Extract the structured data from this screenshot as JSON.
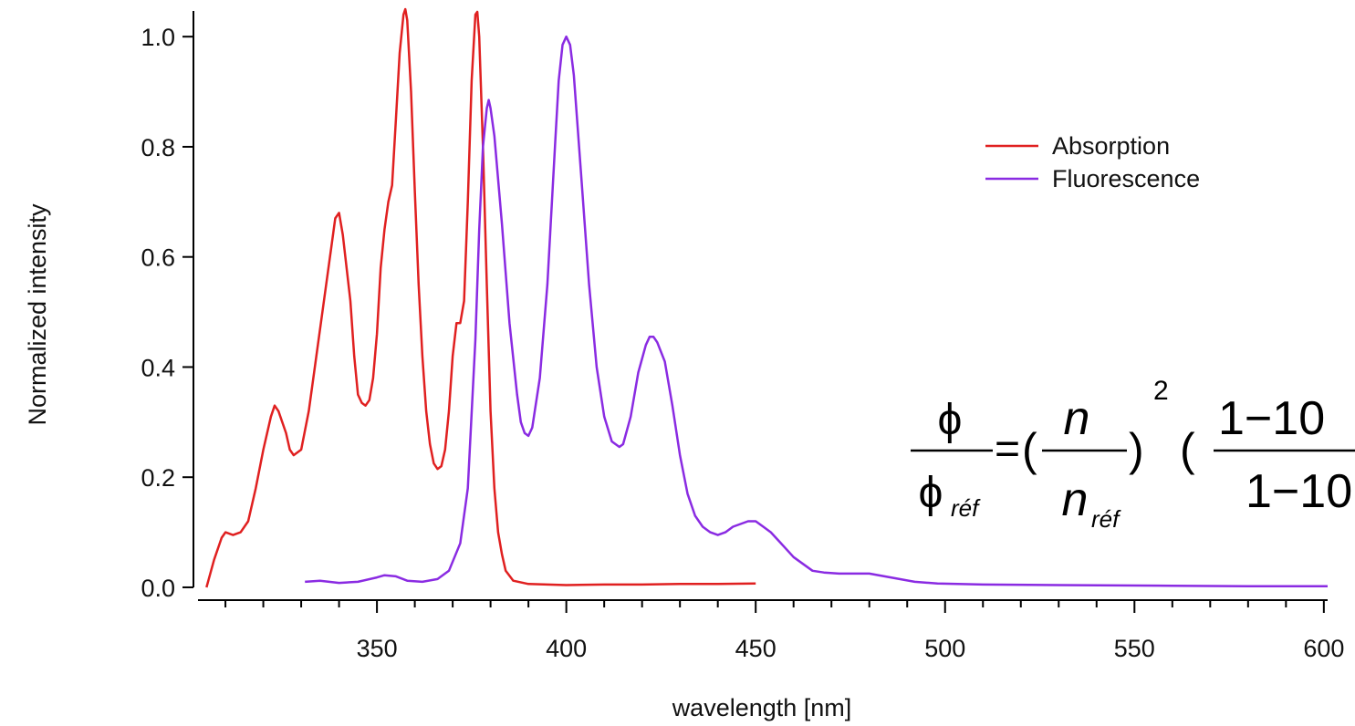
{
  "chart_data": {
    "type": "line",
    "title": "",
    "xlabel": "wavelength [nm]",
    "ylabel": "Normalized intensity",
    "xlim": [
      303,
      601
    ],
    "ylim": [
      -0.01,
      1.05
    ],
    "x_ticks": [
      350,
      400,
      450,
      500,
      550,
      600
    ],
    "x_tick_labels": [
      "350",
      "400",
      "450",
      "500",
      "550",
      "600"
    ],
    "y_ticks": [
      0.0,
      0.2,
      0.4,
      0.6,
      0.8,
      1.0
    ],
    "y_tick_labels": [
      "0.0",
      "0.2",
      "0.4",
      "0.6",
      "0.8",
      "1.0"
    ],
    "grid": false,
    "legend_position": "top-right",
    "series": [
      {
        "name": "Absorption",
        "color": "#e02020",
        "points": [
          [
            305,
            0.0
          ],
          [
            307,
            0.05
          ],
          [
            309,
            0.09
          ],
          [
            310,
            0.1
          ],
          [
            312,
            0.095
          ],
          [
            314,
            0.1
          ],
          [
            316,
            0.12
          ],
          [
            318,
            0.18
          ],
          [
            320,
            0.25
          ],
          [
            322,
            0.31
          ],
          [
            323,
            0.33
          ],
          [
            324,
            0.32
          ],
          [
            326,
            0.28
          ],
          [
            327,
            0.25
          ],
          [
            328,
            0.24
          ],
          [
            330,
            0.25
          ],
          [
            332,
            0.32
          ],
          [
            334,
            0.42
          ],
          [
            336,
            0.52
          ],
          [
            338,
            0.62
          ],
          [
            339,
            0.67
          ],
          [
            340,
            0.68
          ],
          [
            341,
            0.64
          ],
          [
            343,
            0.52
          ],
          [
            344,
            0.42
          ],
          [
            345,
            0.35
          ],
          [
            346,
            0.335
          ],
          [
            347,
            0.33
          ],
          [
            348,
            0.34
          ],
          [
            349,
            0.38
          ],
          [
            350,
            0.46
          ],
          [
            351,
            0.58
          ],
          [
            352,
            0.65
          ],
          [
            353,
            0.7
          ],
          [
            354,
            0.73
          ],
          [
            355,
            0.85
          ],
          [
            356,
            0.97
          ],
          [
            357,
            1.04
          ],
          [
            357.5,
            1.05
          ],
          [
            358,
            1.03
          ],
          [
            359,
            0.9
          ],
          [
            360,
            0.72
          ],
          [
            361,
            0.55
          ],
          [
            362,
            0.42
          ],
          [
            363,
            0.32
          ],
          [
            364,
            0.26
          ],
          [
            365,
            0.225
          ],
          [
            366,
            0.215
          ],
          [
            367,
            0.22
          ],
          [
            368,
            0.25
          ],
          [
            369,
            0.32
          ],
          [
            370,
            0.42
          ],
          [
            371,
            0.48
          ],
          [
            372,
            0.48
          ],
          [
            373,
            0.52
          ],
          [
            374,
            0.7
          ],
          [
            375,
            0.92
          ],
          [
            376,
            1.04
          ],
          [
            376.5,
            1.045
          ],
          [
            377,
            1.0
          ],
          [
            378,
            0.8
          ],
          [
            379,
            0.55
          ],
          [
            380,
            0.32
          ],
          [
            381,
            0.18
          ],
          [
            382,
            0.1
          ],
          [
            383,
            0.06
          ],
          [
            384,
            0.03
          ],
          [
            386,
            0.012
          ],
          [
            390,
            0.006
          ],
          [
            395,
            0.005
          ],
          [
            400,
            0.004
          ],
          [
            410,
            0.005
          ],
          [
            420,
            0.005
          ],
          [
            430,
            0.006
          ],
          [
            440,
            0.006
          ],
          [
            450,
            0.007
          ]
        ]
      },
      {
        "name": "Fluorescence",
        "color": "#8a2be2",
        "points": [
          [
            331,
            0.01
          ],
          [
            335,
            0.012
          ],
          [
            340,
            0.008
          ],
          [
            345,
            0.01
          ],
          [
            350,
            0.018
          ],
          [
            352,
            0.022
          ],
          [
            355,
            0.02
          ],
          [
            358,
            0.012
          ],
          [
            362,
            0.01
          ],
          [
            366,
            0.015
          ],
          [
            369,
            0.03
          ],
          [
            372,
            0.08
          ],
          [
            374,
            0.18
          ],
          [
            376,
            0.45
          ],
          [
            377,
            0.65
          ],
          [
            378,
            0.8
          ],
          [
            379,
            0.87
          ],
          [
            379.5,
            0.885
          ],
          [
            380,
            0.87
          ],
          [
            381,
            0.82
          ],
          [
            383,
            0.66
          ],
          [
            385,
            0.48
          ],
          [
            387,
            0.35
          ],
          [
            388,
            0.3
          ],
          [
            389,
            0.28
          ],
          [
            390,
            0.275
          ],
          [
            391,
            0.29
          ],
          [
            393,
            0.38
          ],
          [
            395,
            0.55
          ],
          [
            397,
            0.8
          ],
          [
            398,
            0.92
          ],
          [
            399,
            0.985
          ],
          [
            400,
            1.0
          ],
          [
            401,
            0.985
          ],
          [
            402,
            0.93
          ],
          [
            404,
            0.74
          ],
          [
            406,
            0.55
          ],
          [
            408,
            0.4
          ],
          [
            410,
            0.31
          ],
          [
            412,
            0.265
          ],
          [
            413,
            0.26
          ],
          [
            414,
            0.255
          ],
          [
            415,
            0.26
          ],
          [
            417,
            0.31
          ],
          [
            419,
            0.39
          ],
          [
            421,
            0.44
          ],
          [
            422,
            0.455
          ],
          [
            423,
            0.455
          ],
          [
            424,
            0.445
          ],
          [
            426,
            0.41
          ],
          [
            428,
            0.33
          ],
          [
            430,
            0.24
          ],
          [
            432,
            0.17
          ],
          [
            434,
            0.13
          ],
          [
            436,
            0.11
          ],
          [
            438,
            0.1
          ],
          [
            440,
            0.095
          ],
          [
            442,
            0.1
          ],
          [
            444,
            0.11
          ],
          [
            446,
            0.115
          ],
          [
            448,
            0.12
          ],
          [
            450,
            0.12
          ],
          [
            452,
            0.11
          ],
          [
            454,
            0.1
          ],
          [
            456,
            0.085
          ],
          [
            458,
            0.07
          ],
          [
            460,
            0.055
          ],
          [
            462,
            0.045
          ],
          [
            465,
            0.03
          ],
          [
            468,
            0.027
          ],
          [
            472,
            0.025
          ],
          [
            476,
            0.025
          ],
          [
            480,
            0.025
          ],
          [
            484,
            0.02
          ],
          [
            488,
            0.015
          ],
          [
            492,
            0.01
          ],
          [
            498,
            0.007
          ],
          [
            510,
            0.005
          ],
          [
            530,
            0.004
          ],
          [
            560,
            0.003
          ],
          [
            580,
            0.002
          ],
          [
            601,
            0.002
          ]
        ]
      }
    ]
  },
  "equation": {
    "lhs_num": "ϕ",
    "lhs_den_main": "ϕ",
    "lhs_den_sub": "réf",
    "equals": "=",
    "open_paren": "(",
    "close_paren": ")",
    "n_num": "n",
    "n_den_main": "n",
    "n_den_sub": "réf",
    "exponent": "2",
    "open_paren_2": "(",
    "frac2_num": "1−10",
    "frac2_den": "1−10"
  }
}
